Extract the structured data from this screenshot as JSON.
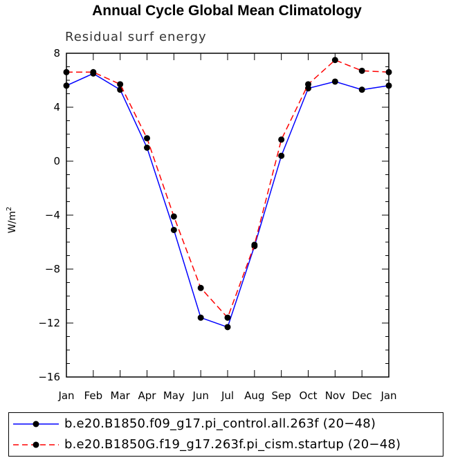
{
  "chart_data": {
    "type": "line",
    "title": "Annual Cycle Global Mean Climatology",
    "subtitle": "Residual surf energy",
    "ylabel": "W/m",
    "ylabel_sup": "2",
    "xlabel": "",
    "ylim": [
      -16,
      8
    ],
    "yticks": [
      8,
      4,
      0,
      -4,
      -8,
      -12,
      -16
    ],
    "ytick_labels": [
      "8",
      "4",
      "0",
      "−4",
      "−8",
      "−12",
      "−16"
    ],
    "categories": [
      "Jan",
      "Feb",
      "Mar",
      "Apr",
      "May",
      "Jun",
      "Jul",
      "Aug",
      "Sep",
      "Oct",
      "Nov",
      "Dec",
      "Jan"
    ],
    "series": [
      {
        "name": "b.e20.B1850.f09_g17.pi_control.all.263f (20−48)",
        "color": "#0000ff",
        "dash": "solid",
        "values": [
          5.6,
          6.5,
          5.3,
          1.0,
          -5.1,
          -11.6,
          -12.3,
          -6.3,
          0.4,
          5.4,
          5.9,
          5.3,
          5.6
        ]
      },
      {
        "name": "b.e20.B1850G.f19_g17.263f.pi_cism.startup (20−48)",
        "color": "#ff0000",
        "dash": "dashed",
        "values": [
          6.6,
          6.6,
          5.7,
          1.7,
          -4.1,
          -9.4,
          -11.6,
          -6.2,
          1.6,
          5.7,
          7.5,
          6.7,
          6.6
        ]
      }
    ]
  }
}
